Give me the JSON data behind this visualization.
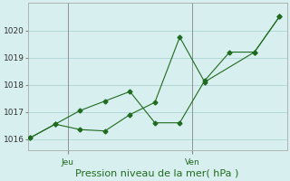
{
  "line1_x": [
    0,
    1,
    2,
    3,
    4,
    5,
    6,
    7,
    8,
    9,
    10
  ],
  "line1_y": [
    1016.05,
    1016.55,
    1017.05,
    1017.4,
    1017.75,
    1016.6,
    1016.6,
    1018.15,
    1019.2,
    1019.2,
    1020.5
  ],
  "line2_x": [
    0,
    1,
    2,
    3,
    4,
    5,
    6,
    7,
    9,
    10
  ],
  "line2_y": [
    1016.05,
    1016.55,
    1016.35,
    1016.3,
    1016.9,
    1017.35,
    1019.75,
    1018.1,
    1019.2,
    1020.5
  ],
  "line_color": "#1f6b1f",
  "marker": "D",
  "marker_size": 2.5,
  "line_width": 0.8,
  "background_color": "#d8efef",
  "grid_color": "#aed4d4",
  "grid_linewidth": 0.6,
  "xlabel": "Pression niveau de la mer( hPa )",
  "xlabel_fontsize": 8,
  "xlabel_color": "#1f6b1f",
  "ytick_values": [
    1016,
    1017,
    1018,
    1019,
    1020
  ],
  "ytick_fontsize": 6.5,
  "xtick_labels": [
    "Jeu",
    "Ven"
  ],
  "xtick_positions": [
    1.5,
    6.5
  ],
  "xtick_fontsize": 6.5,
  "xtick_color": "#1f6b1f",
  "vline_x": [
    1.5,
    6.5
  ],
  "vline_color": "#888888",
  "vline_lw": 0.6,
  "ylim": [
    1015.6,
    1021.0
  ],
  "xlim": [
    -0.1,
    10.3
  ],
  "spine_color": "#aaaaaa",
  "spine_lw": 0.6
}
